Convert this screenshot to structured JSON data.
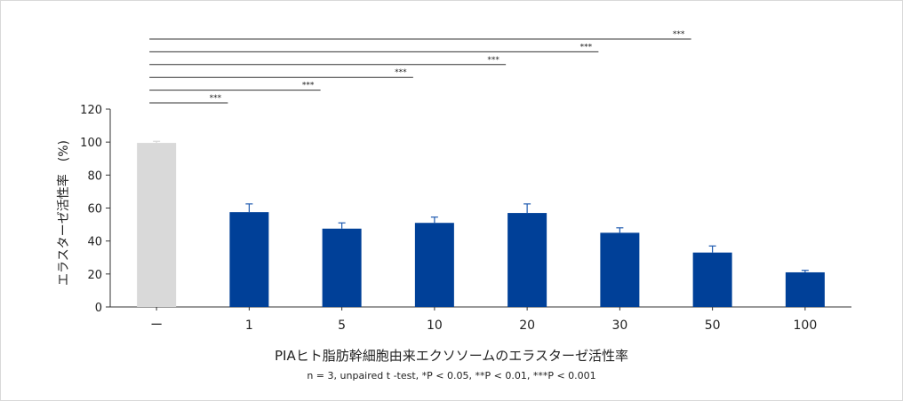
{
  "chart_data": {
    "type": "bar",
    "ylabel": "エラスターゼ活性率　(%)",
    "xlabel": "PIAヒト脂肪幹細胞由来エクソソームのエラスターゼ活性率",
    "note": "n = 3, unpaired t -test, *P < 0.05, **P < 0.01, ***P < 0.001",
    "ylim": [
      0,
      120
    ],
    "yticks": [
      0,
      20,
      40,
      60,
      80,
      100,
      120
    ],
    "categories": [
      "ー",
      "1",
      "5",
      "10",
      "20",
      "30",
      "50",
      "100"
    ],
    "values": [
      99.5,
      57.5,
      47.5,
      51,
      57,
      45,
      33,
      21
    ],
    "errors": [
      1.0,
      5.0,
      3.5,
      3.5,
      5.5,
      3.0,
      4.0,
      1.2
    ],
    "bar_colors": [
      "#d9d9d9",
      "#004098",
      "#004098",
      "#004098",
      "#004098",
      "#004098",
      "#004098",
      "#004098"
    ],
    "error_colors": [
      "#d9d9d9",
      "#1f5bb0",
      "#1f5bb0",
      "#1f5bb0",
      "#1f5bb0",
      "#1f5bb0",
      "#1f5bb0",
      "#1f5bb0"
    ],
    "significance": [
      {
        "from": 0,
        "to": 1,
        "label": "***"
      },
      {
        "from": 0,
        "to": 2,
        "label": "***"
      },
      {
        "from": 0,
        "to": 3,
        "label": "***"
      },
      {
        "from": 0,
        "to": 4,
        "label": "***"
      },
      {
        "from": 0,
        "to": 5,
        "label": "***"
      },
      {
        "from": 0,
        "to": 6,
        "label": "***"
      }
    ]
  }
}
